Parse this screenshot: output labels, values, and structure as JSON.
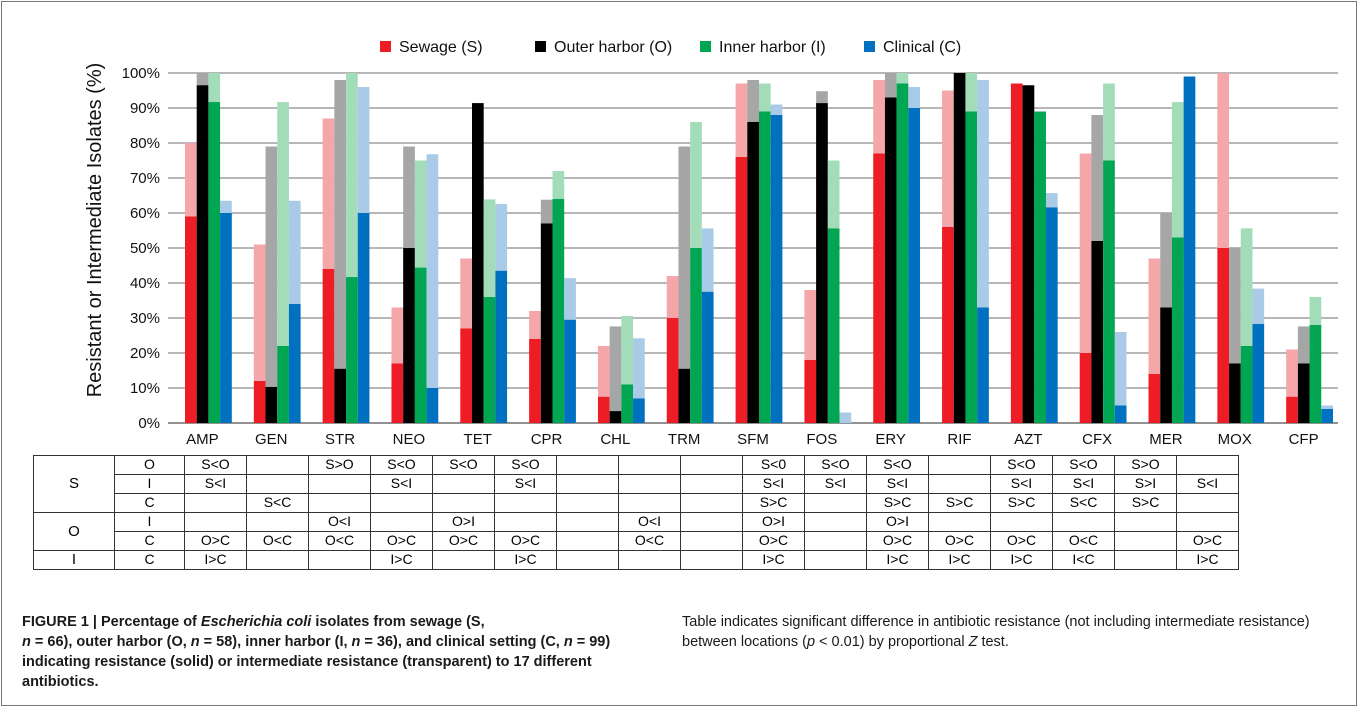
{
  "chart_data": {
    "type": "bar",
    "ylabel": "Resistant or Intermediate Isolates (%)",
    "ylim": [
      0,
      100
    ],
    "yticks": [
      "0%",
      "10%",
      "20%",
      "30%",
      "40%",
      "50%",
      "60%",
      "70%",
      "80%",
      "90%",
      "100%"
    ],
    "grid": true,
    "legend_position": "top",
    "categories": [
      "AMP",
      "GEN",
      "STR",
      "NEO",
      "TET",
      "CPR",
      "CHL",
      "TRM",
      "SFM",
      "FOS",
      "ERY",
      "RIF",
      "AZT",
      "CFX",
      "MER",
      "MOX",
      "CFP"
    ],
    "series": [
      {
        "name": "Sewage (S)",
        "color": "#ee1c25",
        "light_color": "#f4a6a9",
        "resistant": [
          59,
          12,
          44,
          17,
          27,
          24,
          7.5,
          30,
          76,
          18,
          77,
          56,
          97,
          20,
          14,
          50,
          7.5
        ],
        "intermediate": [
          80,
          51,
          87,
          33,
          47,
          32,
          22,
          42,
          97,
          38,
          98,
          95,
          97,
          77,
          47,
          100,
          21
        ]
      },
      {
        "name": "Outer harbor (O)",
        "color": "#000000",
        "light_color": "#a6a6a6",
        "resistant": [
          96.5,
          10.3,
          15.5,
          50,
          91.4,
          57,
          3.4,
          15.5,
          86,
          91.4,
          93,
          100,
          96.5,
          52,
          33,
          17,
          17
        ],
        "intermediate": [
          100,
          79,
          98,
          79,
          91.4,
          63.8,
          27.6,
          79,
          98,
          94.8,
          100,
          100,
          96.5,
          88,
          60,
          50,
          27.6
        ]
      },
      {
        "name": "Inner harbor (I)",
        "color": "#00a651",
        "light_color": "#a3dcb9",
        "resistant": [
          91.7,
          22,
          41.7,
          44.4,
          36,
          64,
          11,
          50,
          89,
          55.6,
          97,
          89,
          89,
          75,
          53,
          22,
          28
        ],
        "intermediate": [
          100,
          91.7,
          100,
          75,
          63.9,
          72,
          30.6,
          86,
          97,
          75,
          100,
          100,
          89,
          97,
          91.7,
          55.6,
          36
        ]
      },
      {
        "name": "Clinical (C)",
        "color": "#0070c0",
        "light_color": "#a9cbe8",
        "resistant": [
          60,
          34,
          60,
          10,
          43.5,
          29.5,
          7,
          37.5,
          88,
          0,
          90,
          33,
          61.6,
          5,
          99,
          28.3,
          4
        ],
        "intermediate": [
          63.5,
          63.5,
          96,
          76.8,
          62.6,
          41.4,
          24.2,
          55.6,
          91,
          3,
          96,
          98,
          65.7,
          26,
          99,
          38.4,
          5
        ]
      }
    ]
  },
  "table": {
    "header": [
      "AMP",
      "GEN",
      "STR",
      "NEO",
      "TET",
      "CPR",
      "CHL",
      "TRM",
      "SFM",
      "FOS",
      "ERY",
      "RIF",
      "AZT",
      "CFX",
      "MER",
      "MOX",
      "CFP"
    ],
    "groups": [
      {
        "label": "S",
        "rows": [
          {
            "cmp": "O",
            "vals": [
              "S<O",
              "",
              "S>O",
              "S<O",
              "S<O",
              "S<O",
              "",
              "",
              "",
              "S<0",
              "S<O",
              "S<O",
              "",
              "S<O",
              "S<O",
              "S>O",
              ""
            ]
          },
          {
            "cmp": "I",
            "vals": [
              "S<I",
              "",
              "",
              "S<I",
              "",
              "S<I",
              "",
              "",
              "",
              "S<I",
              "S<I",
              "S<I",
              "",
              "S<I",
              "S<I",
              "S>I",
              "S<I"
            ]
          },
          {
            "cmp": "C",
            "vals": [
              "",
              "S<C",
              "",
              "",
              "",
              "",
              "",
              "",
              "",
              "S>C",
              "",
              "S>C",
              "S>C",
              "S>C",
              "S<C",
              "S>C",
              ""
            ]
          }
        ]
      },
      {
        "label": "O",
        "rows": [
          {
            "cmp": "I",
            "vals": [
              "",
              "",
              "O<I",
              "",
              "O>I",
              "",
              "",
              "O<I",
              "",
              "O>I",
              "",
              "O>I",
              "",
              "",
              "",
              "",
              ""
            ]
          },
          {
            "cmp": "C",
            "vals": [
              "O>C",
              "O<C",
              "O<C",
              "O>C",
              "O>C",
              "O>C",
              "",
              "O<C",
              "",
              "O>C",
              "",
              "O>C",
              "O>C",
              "O>C",
              "O<C",
              "",
              "O>C"
            ]
          }
        ]
      },
      {
        "label": "I",
        "rows": [
          {
            "cmp": "C",
            "vals": [
              "I>C",
              "",
              "",
              "I>C",
              "",
              "I>C",
              "",
              "",
              "",
              "I>C",
              "",
              "I>C",
              "I>C",
              "I>C",
              "I<C",
              "",
              "I>C"
            ]
          }
        ]
      }
    ]
  },
  "caption": {
    "fig_label": "FIGURE 1 | Percentage of ",
    "species": "Escherichia coli",
    "bold_a": " isolates from sewage (S, ",
    "n1": "n",
    "bold_b": " = 66), outer harbor (O, ",
    "n2": "n",
    "bold_c": " = 58), inner harbor (I, ",
    "n3": "n",
    "bold_d": " = 36), and clinical setting (C, ",
    "n4": "n",
    "bold_e": " = 99) indicating resistance (solid) or intermediate resistance (transparent) to 17 different antibiotics.",
    "plain_a": " Table indicates significant difference in antibiotic resistance (not including intermediate resistance) between locations (",
    "p": "p",
    "plain_b": " < 0.01) by proportional ",
    "z": "Z",
    "plain_c": " test."
  }
}
